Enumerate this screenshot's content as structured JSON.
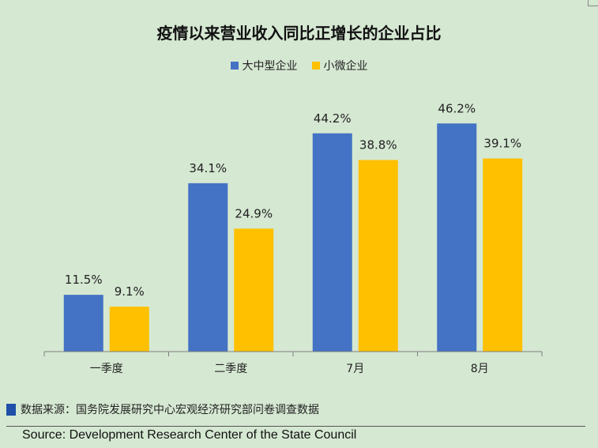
{
  "chart_data": {
    "type": "bar",
    "title": "疫情以来营业收入同比正增长的企业占比",
    "categories": [
      "一季度",
      "二季度",
      "7月",
      "8月"
    ],
    "series": [
      {
        "name": "大中型企业",
        "color": "#4472c4",
        "values": [
          11.5,
          34.1,
          44.2,
          46.2
        ],
        "labels": [
          "11.5%",
          "34.1%",
          "44.2%",
          "46.2%"
        ]
      },
      {
        "name": "小微企业",
        "color": "#ffc000",
        "values": [
          9.1,
          24.9,
          38.8,
          39.1
        ],
        "labels": [
          "9.1%",
          "24.9%",
          "38.8%",
          "39.1%"
        ]
      }
    ],
    "ylim": [
      0,
      50
    ],
    "grid": false,
    "legend_position": "top-center"
  },
  "footer": {
    "note": "数据来源：国务院发展研究中心宏观经济研究部问卷调查数据",
    "source": "Source: Development Research Center of the State Council"
  }
}
